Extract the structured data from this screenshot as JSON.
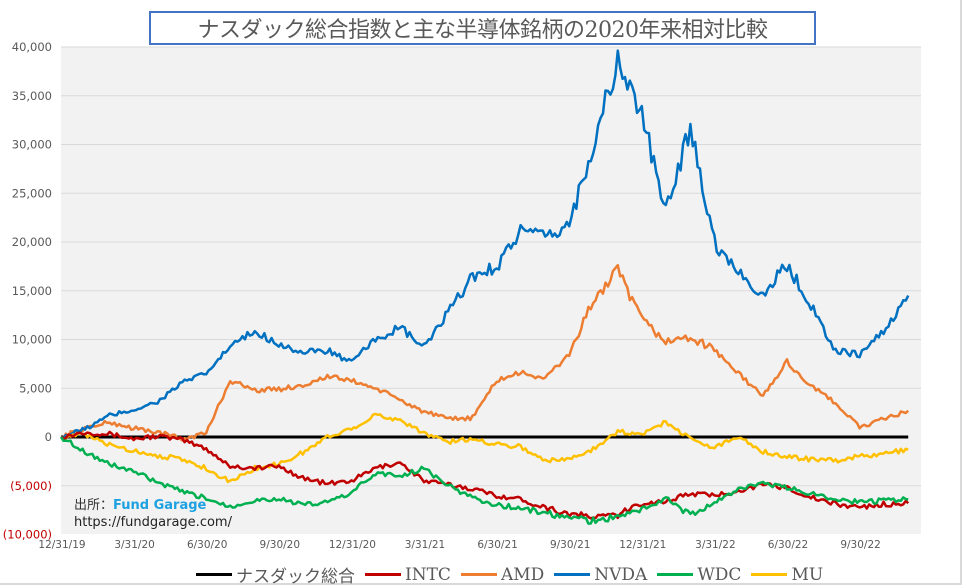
{
  "chart_data": {
    "type": "line",
    "title": "ナスダック総合指数と主な半導体銘柄の2020年来相対比較",
    "xlabel": "",
    "ylabel": "",
    "ylim": [
      -10000,
      40000
    ],
    "yticks": [
      40000,
      35000,
      30000,
      25000,
      20000,
      15000,
      10000,
      5000,
      0,
      -5000,
      -10000
    ],
    "ytick_labels": [
      "40,000",
      "35,000",
      "30,000",
      "25,000",
      "20,000",
      "15,000",
      "10,000",
      "5,000",
      "0",
      "(5,000)",
      "(10,000)"
    ],
    "xtick_labels": [
      "12/31/19",
      "3/31/20",
      "6/30/20",
      "9/30/20",
      "12/31/20",
      "3/31/21",
      "6/30/21",
      "9/30/21",
      "12/31/21",
      "3/31/22",
      "6/30/22",
      "9/30/22"
    ],
    "x_unit": "quarters since 12/31/19",
    "grid": "horizontal",
    "legend_position": "bottom",
    "x": [
      0,
      0.33,
      0.67,
      1,
      1.33,
      1.67,
      2,
      2.33,
      2.67,
      3,
      3.33,
      3.67,
      4,
      4.33,
      4.67,
      5,
      5.33,
      5.67,
      6,
      6.33,
      6.67,
      7,
      7.33,
      7.67,
      8,
      8.33,
      8.67,
      9,
      9.33,
      9.67,
      10,
      10.33,
      10.67,
      11,
      11.33,
      11.67
    ],
    "series": [
      {
        "name": "ナスダック総合",
        "color": "#000000",
        "values": [
          0,
          0,
          0,
          0,
          0,
          0,
          0,
          0,
          0,
          0,
          0,
          0,
          0,
          0,
          0,
          0,
          0,
          0,
          0,
          0,
          0,
          0,
          0,
          0,
          0,
          0,
          0,
          0,
          0,
          0,
          0,
          0,
          0,
          0,
          0,
          0
        ]
      },
      {
        "name": "INTC",
        "color": "#c00000",
        "values": [
          0,
          500,
          300,
          -200,
          100,
          -300,
          -1200,
          -3000,
          -3200,
          -3000,
          -4200,
          -4800,
          -4500,
          -3200,
          -2600,
          -4500,
          -4900,
          -5300,
          -6000,
          -6400,
          -7200,
          -7900,
          -8200,
          -8000,
          -6800,
          -6600,
          -5800,
          -6000,
          -5500,
          -4900,
          -5200,
          -6200,
          -6900,
          -7200,
          -6900,
          -6800
        ]
      },
      {
        "name": "AMD",
        "color": "#ed7d31",
        "values": [
          0,
          900,
          1500,
          900,
          500,
          -200,
          400,
          5800,
          4800,
          4900,
          5300,
          6200,
          5800,
          5000,
          3800,
          2600,
          1800,
          2000,
          5800,
          6600,
          6000,
          8500,
          14000,
          17000,
          12000,
          9800,
          10200,
          9000,
          6500,
          4200,
          7700,
          5200,
          3500,
          1000,
          1800,
          2700
        ]
      },
      {
        "name": "NVDA",
        "color": "#0070c0",
        "values": [
          0,
          800,
          2200,
          2800,
          3600,
          5600,
          6500,
          9300,
          10800,
          9600,
          8600,
          8900,
          7600,
          10000,
          11200,
          9200,
          12700,
          16500,
          17500,
          21200,
          20300,
          21800,
          30000,
          38500,
          33000,
          23000,
          32000,
          20000,
          17000,
          14500,
          17700,
          13500,
          8800,
          8500,
          10800,
          14500
        ]
      },
      {
        "name": "WDC",
        "color": "#00b050",
        "values": [
          0,
          -1500,
          -2800,
          -3500,
          -4700,
          -5600,
          -6300,
          -7100,
          -6500,
          -6300,
          -7000,
          -6700,
          -5700,
          -3700,
          -4000,
          -3200,
          -5000,
          -6200,
          -7000,
          -7300,
          -7800,
          -8300,
          -8600,
          -8200,
          -7400,
          -6300,
          -8000,
          -6800,
          -5300,
          -4800,
          -5200,
          -5800,
          -6300,
          -6700,
          -6500,
          -6400
        ]
      },
      {
        "name": "MU",
        "color": "#ffc000",
        "values": [
          0,
          200,
          -800,
          -1400,
          -1900,
          -2300,
          -3200,
          -4600,
          -3200,
          -2800,
          -1600,
          0,
          900,
          2200,
          1800,
          400,
          -500,
          -200,
          -700,
          -1000,
          -2400,
          -2300,
          -1200,
          600,
          200,
          1600,
          -200,
          -1100,
          100,
          -1500,
          -2000,
          -2300,
          -2400,
          -2000,
          -1700,
          -1300
        ]
      }
    ]
  },
  "source": {
    "label": "出所：",
    "brand": "Fund Garage",
    "url": "https://fundgarage.com/"
  }
}
